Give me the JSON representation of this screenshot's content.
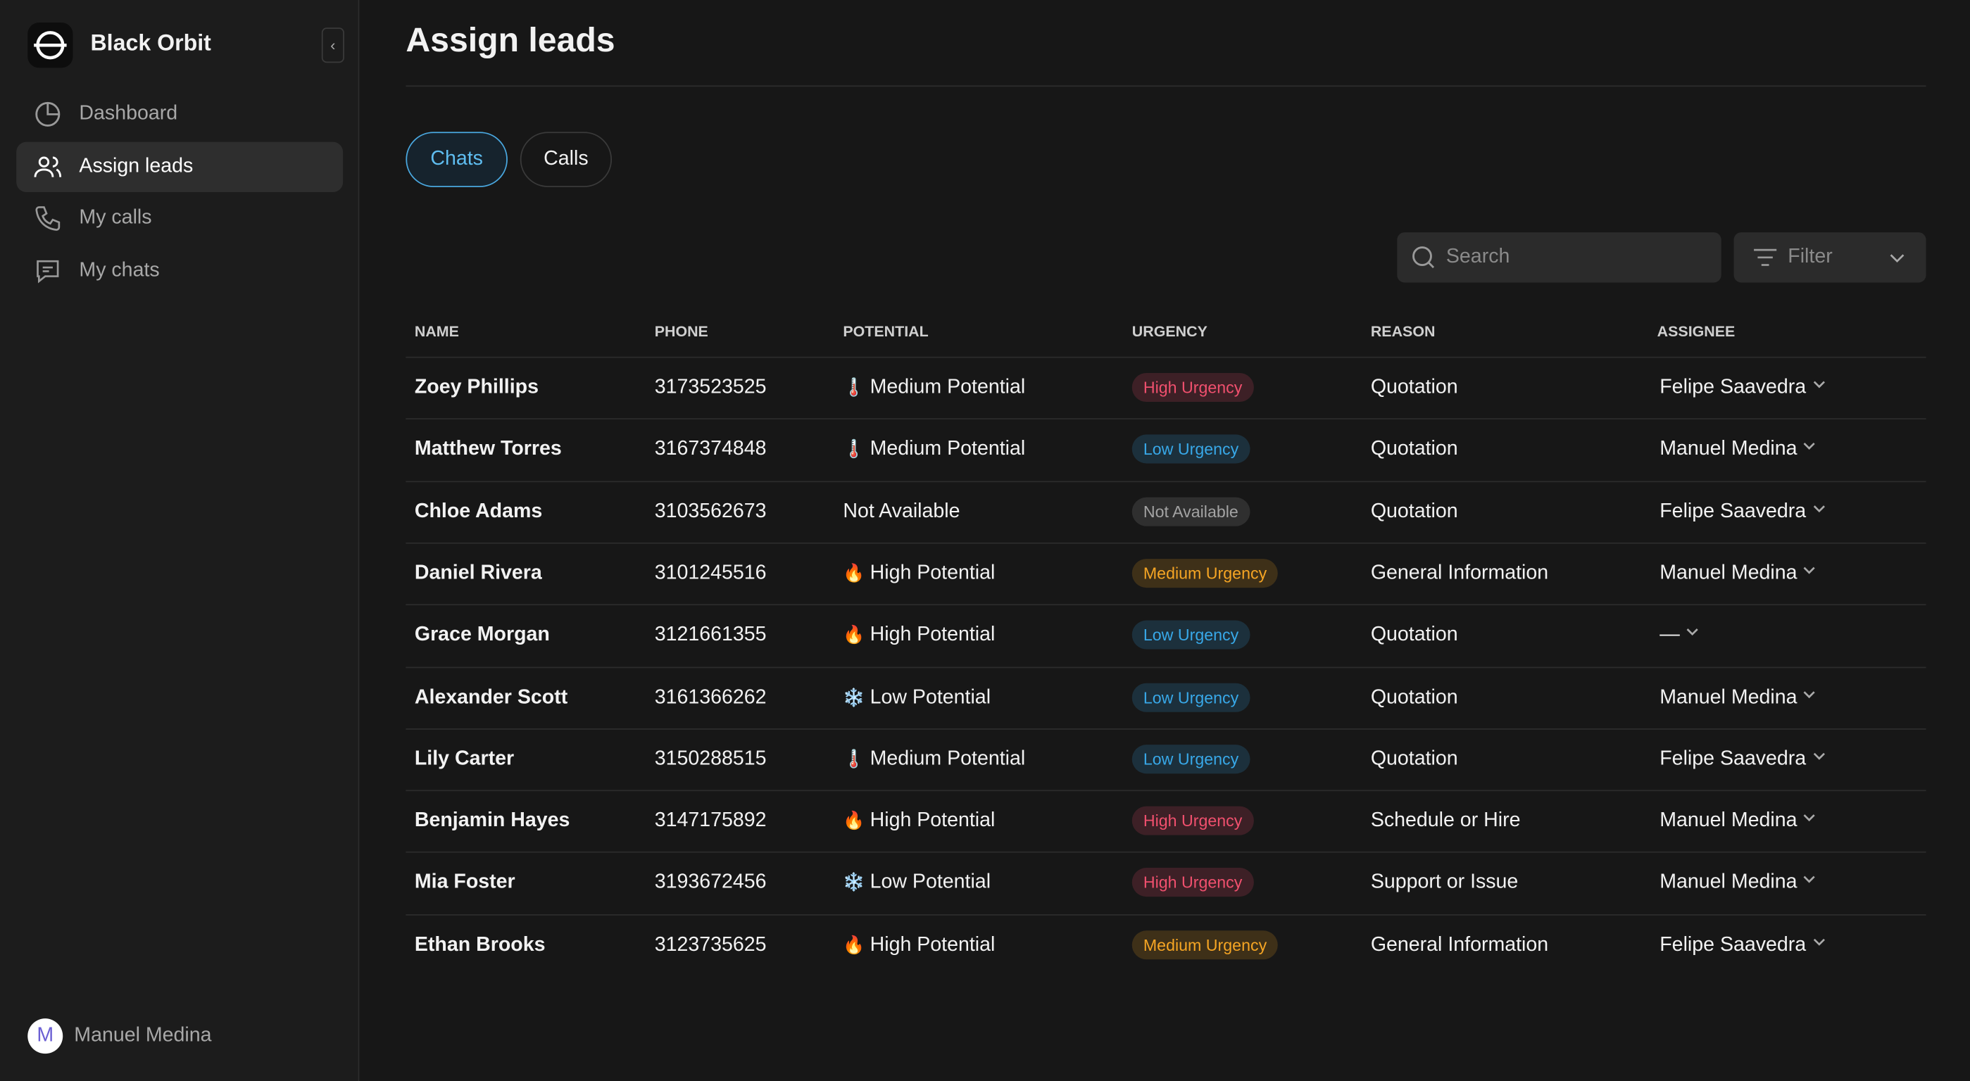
{
  "sidebar": {
    "brand": "Black Orbit",
    "nav": [
      "Dashboard",
      "Assign leads",
      "My calls",
      "My chats"
    ],
    "active": 1,
    "user": {
      "initial": "M",
      "name": "Manuel Medina"
    }
  },
  "header": {
    "title": "Assign leads"
  },
  "tabs": {
    "items": [
      "Chats",
      "Calls"
    ],
    "active": 0
  },
  "toolbar": {
    "search": "Search",
    "filter": "Filter"
  },
  "table": {
    "columns": [
      "NAME",
      "PHONE",
      "POTENTIAL",
      "URGENCY",
      "REASON",
      "ASSIGNEE"
    ],
    "rows": [
      [
        "Zoey Phillips",
        "3173523525",
        {
          "icon": "🌡️",
          "label": "Medium Potential"
        },
        {
          "label": "High Urgency",
          "color": "#f0506e"
        },
        "Quotation",
        "Felipe Saavedra"
      ],
      [
        "Matthew Torres",
        "3167374848",
        {
          "icon": "🌡️",
          "label": "Medium Potential"
        },
        {
          "label": "Low Urgency",
          "color": "#38a8e8"
        },
        "Quotation",
        "Manuel Medina"
      ],
      [
        "Chloe Adams",
        "3103562673",
        {
          "label": "Not Available"
        },
        {
          "label": "Not Available",
          "color": "#a3a3a3"
        },
        "Quotation",
        "Felipe Saavedra"
      ],
      [
        "Daniel Rivera",
        "3101245516",
        {
          "icon": "🔥",
          "label": "High Potential"
        },
        {
          "label": "Medium Urgency",
          "color": "#f5a524"
        },
        "General Information",
        "Manuel Medina"
      ],
      [
        "Grace Morgan",
        "3121661355",
        {
          "icon": "🔥",
          "label": "High Potential"
        },
        {
          "label": "Low Urgency",
          "color": "#38a8e8"
        },
        "Quotation",
        "—"
      ],
      [
        "Alexander Scott",
        "3161366262",
        {
          "icon": "❄️",
          "label": "Low Potential"
        },
        {
          "label": "Low Urgency",
          "color": "#38a8e8"
        },
        "Quotation",
        "Manuel Medina"
      ],
      [
        "Lily Carter",
        "3150288515",
        {
          "icon": "🌡️",
          "label": "Medium Potential"
        },
        {
          "label": "Low Urgency",
          "color": "#38a8e8"
        },
        "Quotation",
        "Felipe Saavedra"
      ],
      [
        "Benjamin Hayes",
        "3147175892",
        {
          "icon": "🔥",
          "label": "High Potential"
        },
        {
          "label": "High Urgency",
          "color": "#f0506e"
        },
        "Schedule or Hire",
        "Manuel Medina"
      ],
      [
        "Mia Foster",
        "3193672456",
        {
          "icon": "❄️",
          "label": "Low Potential"
        },
        {
          "label": "High Urgency",
          "color": "#f0506e"
        },
        "Support or Issue",
        "Manuel Medina"
      ],
      [
        "Ethan Brooks",
        "3123735625",
        {
          "icon": "🔥",
          "label": "High Potential"
        },
        {
          "label": "Medium Urgency",
          "color": "#f5a524"
        },
        "General Information",
        "Felipe Saavedra"
      ]
    ]
  }
}
